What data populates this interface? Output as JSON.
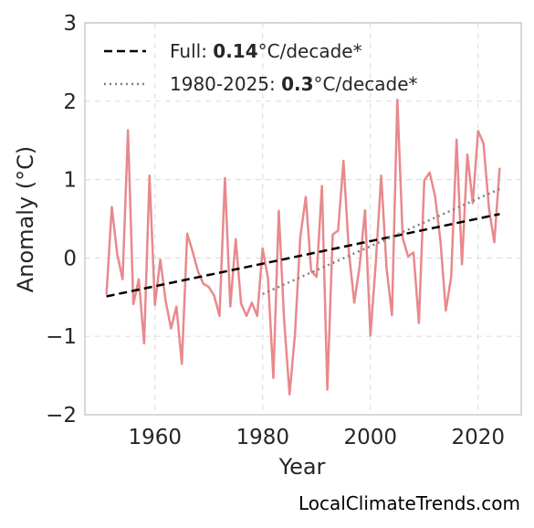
{
  "chart_data": {
    "type": "line",
    "xlabel": "Year",
    "ylabel": "Anomaly (°C)",
    "xlim": [
      1947,
      2028
    ],
    "ylim": [
      -2,
      3
    ],
    "xticks": [
      1960,
      1980,
      2000,
      2020
    ],
    "yticks": [
      -2,
      -1,
      0,
      1,
      2,
      3
    ],
    "ytick_labels": [
      "−2",
      "−1",
      "0",
      "1",
      "2",
      "3"
    ],
    "xtick_labels": [
      "1960",
      "1980",
      "2000",
      "2020"
    ],
    "grid": true,
    "legend_placement": "top-left",
    "x": [
      1951,
      1952,
      1953,
      1954,
      1955,
      1956,
      1957,
      1958,
      1959,
      1960,
      1961,
      1962,
      1963,
      1964,
      1965,
      1966,
      1967,
      1968,
      1969,
      1970,
      1971,
      1972,
      1973,
      1974,
      1975,
      1976,
      1977,
      1978,
      1979,
      1980,
      1981,
      1982,
      1983,
      1984,
      1985,
      1986,
      1987,
      1988,
      1989,
      1990,
      1991,
      1992,
      1993,
      1994,
      1995,
      1996,
      1997,
      1998,
      1999,
      2000,
      2001,
      2002,
      2003,
      2004,
      2005,
      2006,
      2007,
      2008,
      2009,
      2010,
      2011,
      2012,
      2013,
      2014,
      2015,
      2016,
      2017,
      2018,
      2019,
      2020,
      2021,
      2022,
      2023,
      2024
    ],
    "series": [
      {
        "color": "#e8898c",
        "values": [
          -0.47,
          0.65,
          0.05,
          -0.27,
          1.63,
          -0.59,
          -0.27,
          -1.09,
          1.05,
          -0.6,
          -0.02,
          -0.55,
          -0.9,
          -0.62,
          -1.35,
          0.31,
          0.08,
          -0.17,
          -0.33,
          -0.37,
          -0.48,
          -0.74,
          1.02,
          -0.62,
          0.24,
          -0.58,
          -0.74,
          -0.57,
          -0.74,
          0.12,
          -0.26,
          -1.53,
          0.6,
          -0.8,
          -1.74,
          -0.98,
          0.27,
          0.78,
          -0.17,
          -0.24,
          0.92,
          -1.68,
          0.3,
          0.35,
          1.24,
          0.08,
          -0.57,
          -0.1,
          0.61,
          -0.99,
          -0.06,
          1.05,
          -0.13,
          -0.73,
          2.02,
          0.25,
          0.02,
          0.07,
          -0.83,
          0.99,
          1.09,
          0.79,
          0.22,
          -0.67,
          -0.24,
          1.51,
          -0.08,
          1.32,
          0.7,
          1.62,
          1.46,
          0.64,
          0.2,
          1.15
        ]
      }
    ],
    "trend_lines": [
      {
        "label_prefix": "Full: ",
        "label_value": "0.14",
        "label_suffix": "°C/decade*",
        "style": "dashed",
        "color": "#000000",
        "x": [
          1951,
          2024
        ],
        "y": [
          -0.49,
          0.56
        ]
      },
      {
        "label_prefix": "1980-2025: ",
        "label_value": "0.3",
        "label_suffix": "°C/decade*",
        "style": "dotted",
        "color": "#808080",
        "x": [
          1980,
          2024
        ],
        "y": [
          -0.46,
          0.88
        ]
      }
    ]
  },
  "watermark": "LocalClimateTrends.com"
}
